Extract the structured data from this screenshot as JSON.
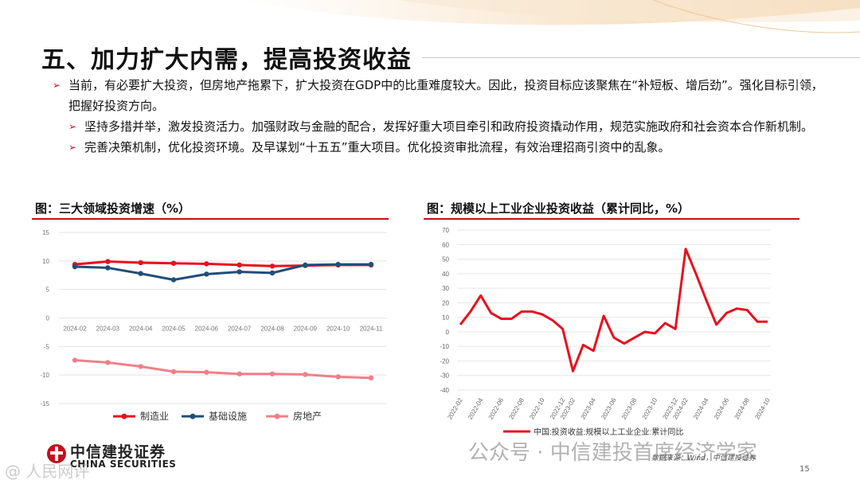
{
  "slide": {
    "title": "五、加力扩大内需，提高投资收益",
    "page_number": "15",
    "source": "数据来源：Wind，中信建投证券",
    "logo_cn": "中信建投证券",
    "logo_en": "CHINA SECURITIES",
    "watermark": "公众号 · 中信建投首席经济学家",
    "watermark_small": "@ 人民网评",
    "accent_color": "#c40f1e"
  },
  "bullets": [
    {
      "level": 1,
      "text": "当前，有必要扩大投资，但房地产拖累下，扩大投资在GDP中的比重难度较大。因此，投资目标应该聚焦在“补短板、增后劲”。强化目标引领，把握好投资方向。"
    },
    {
      "level": 2,
      "text": "坚持多措并举，激发投资活力。加强财政与金融的配合，发挥好重大项目牵引和政府投资撬动作用，规范实施政府和社会资本合作新机制。"
    },
    {
      "level": 2,
      "text": "完善决策机制，优化投资环境。及早谋划“十五五”重大项目。优化投资审批流程，有效治理招商引资中的乱象。"
    }
  ],
  "chart_data": [
    {
      "type": "line",
      "title": "图：三大领域投资增速（%）",
      "x": [
        "2024-02",
        "2024-03",
        "2024-04",
        "2024-05",
        "2024-06",
        "2024-07",
        "2024-08",
        "2024-09",
        "2024-10",
        "2024-11"
      ],
      "ylim": [
        -15,
        15
      ],
      "yticks": [
        15,
        10,
        5,
        0,
        -5,
        -10,
        -15
      ],
      "grid": "horizontal",
      "legend_position": "bottom",
      "series": [
        {
          "name": "制造业",
          "color": "#e8101e",
          "values": [
            9.4,
            9.9,
            9.7,
            9.6,
            9.5,
            9.3,
            9.1,
            9.2,
            9.3,
            9.3
          ]
        },
        {
          "name": "基础设施",
          "color": "#1f4e79",
          "values": [
            9.0,
            8.8,
            7.8,
            6.7,
            7.7,
            8.1,
            7.9,
            9.3,
            9.4,
            9.4
          ]
        },
        {
          "name": "房地产",
          "color": "#f07f8a",
          "values": [
            -7.4,
            -7.8,
            -8.5,
            -9.4,
            -9.5,
            -9.8,
            -9.8,
            -9.9,
            -10.3,
            -10.5
          ]
        }
      ]
    },
    {
      "type": "line",
      "title": "图：规模以上工业企业投资收益（累计同比，%）",
      "x": [
        "2022-02",
        "2022-03",
        "2022-04",
        "2022-05",
        "2022-06",
        "2022-07",
        "2022-08",
        "2022-09",
        "2022-10",
        "2022-11",
        "2022-12",
        "2023-02",
        "2023-03",
        "2023-04",
        "2023-05",
        "2023-06",
        "2023-07",
        "2023-08",
        "2023-09",
        "2023-10",
        "2023-11",
        "2023-12",
        "2024-02",
        "2024-03",
        "2024-04",
        "2024-05",
        "2024-06",
        "2024-07",
        "2024-08",
        "2024-09",
        "2024-10"
      ],
      "xticks": [
        "2022-02",
        "2022-04",
        "2022-06",
        "2022-08",
        "2022-10",
        "2022-12",
        "2023-02",
        "2023-04",
        "2023-06",
        "2023-08",
        "2023-10",
        "2023-12",
        "2024-02",
        "2024-04",
        "2024-06",
        "2024-08",
        "2024-10"
      ],
      "ylim": [
        -40,
        70
      ],
      "yticks": [
        70,
        60,
        50,
        40,
        30,
        20,
        10,
        0,
        -10,
        -20,
        -30,
        -40
      ],
      "grid": "horizontal",
      "legend_position": "bottom",
      "series": [
        {
          "name": "中国:投资收益:规模以上工业企业:累计同比",
          "color": "#e8101e",
          "values": [
            5,
            14,
            25,
            13,
            9,
            9,
            14,
            14,
            12,
            8,
            2,
            -27,
            -9,
            -13,
            11,
            -4,
            -8,
            -4,
            0,
            -1,
            6,
            2,
            57,
            40,
            22,
            5,
            13,
            16,
            15,
            7,
            7
          ]
        }
      ]
    }
  ]
}
